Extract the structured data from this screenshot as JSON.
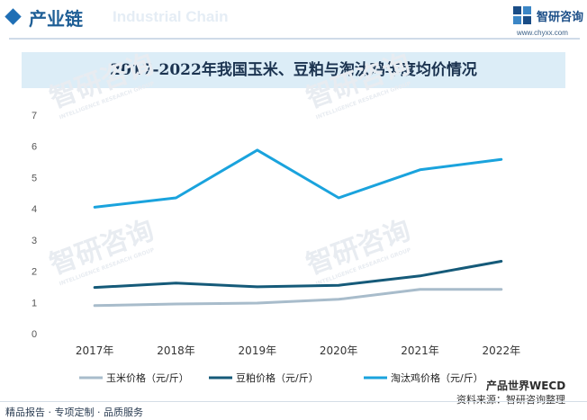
{
  "header": {
    "section_title": "产业链",
    "section_ghost": "Industrial Chain",
    "brand_name": "智研咨询",
    "brand_url": "www.chyxx.com"
  },
  "footer": {
    "tagline": "精品报告 · 专项定制 · 品质服务",
    "wechat": "产品世界WECD",
    "source": "资料来源：智研咨询整理"
  },
  "watermark": {
    "text": "智研咨询",
    "subtext": "INTELLIGENCE RESEARCH GROUP"
  },
  "colors": {
    "corn": "#a8bccb",
    "soymeal": "#155a79",
    "hen": "#1aa3dd",
    "accent": "#1f5f96"
  },
  "chart_data": {
    "type": "line",
    "title": "2017-2022年我国玉米、豆粕与淘汰鸡年度均价情况",
    "categories": [
      "2017年",
      "2018年",
      "2019年",
      "2020年",
      "2021年",
      "2022年"
    ],
    "ylim": [
      0,
      7
    ],
    "yticks": [
      "0",
      "1",
      "2",
      "3",
      "4",
      "5",
      "6",
      "7"
    ],
    "grid": false,
    "legend_position": "bottom",
    "series": [
      {
        "name": "玉米价格（元/斤）",
        "color": "#a8bccb",
        "values": [
          0.9,
          0.95,
          0.98,
          1.1,
          1.42,
          1.42
        ]
      },
      {
        "name": "豆粕价格（元/斤）",
        "color": "#155a79",
        "values": [
          1.48,
          1.62,
          1.5,
          1.55,
          1.85,
          2.32
        ]
      },
      {
        "name": "淘汰鸡价格（元/斤）",
        "color": "#1aa3dd",
        "values": [
          4.05,
          4.35,
          5.88,
          4.35,
          5.25,
          5.58
        ]
      }
    ]
  }
}
